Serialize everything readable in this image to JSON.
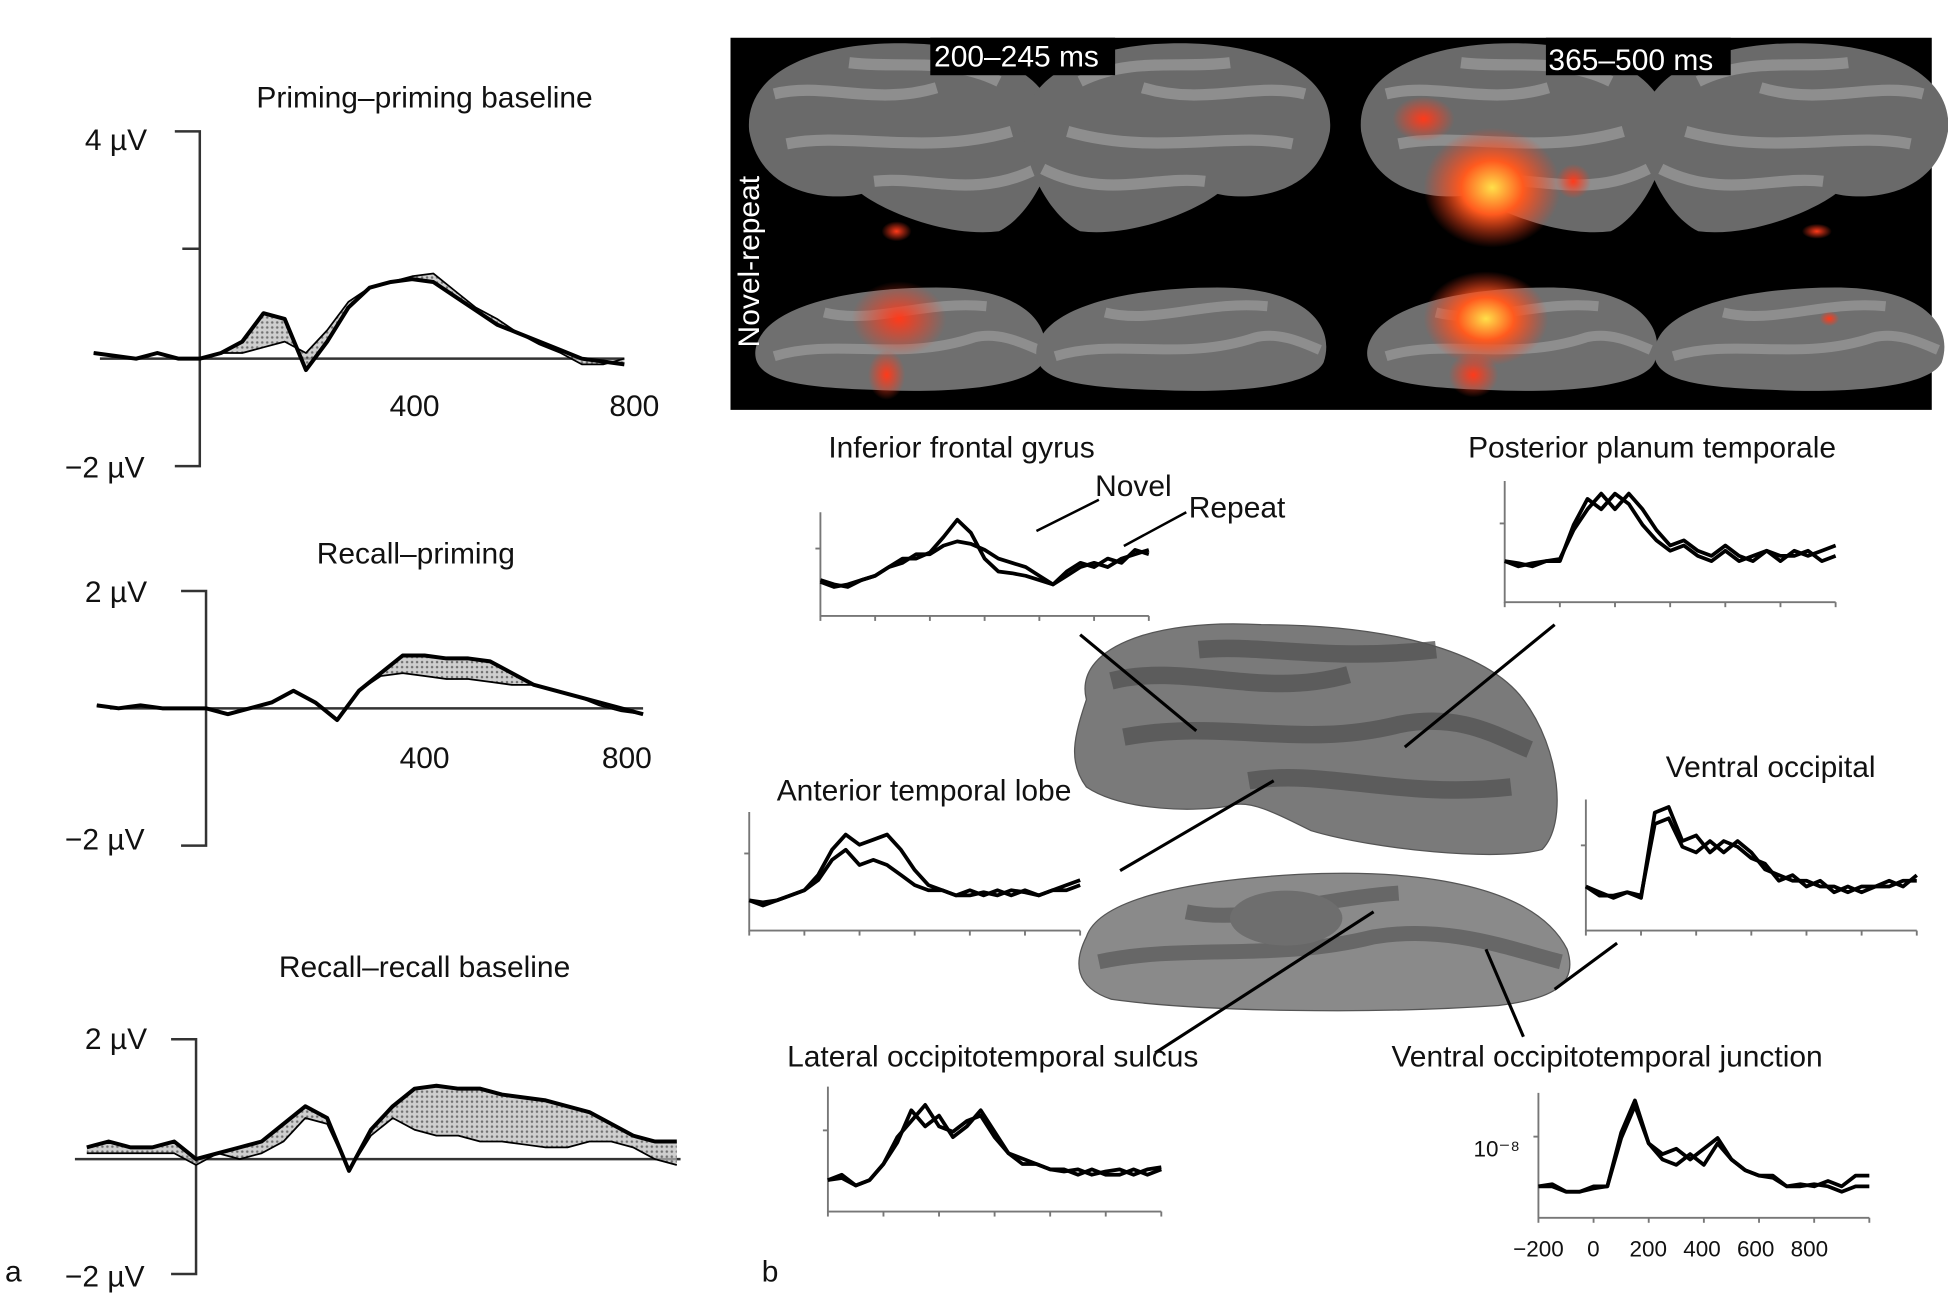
{
  "panel_labels": {
    "a": "a",
    "b": "b"
  },
  "brain_panel": {
    "time_window_1": "200–245 ms",
    "time_window_2": "365–500 ms",
    "row_label": "Novel-repeat"
  },
  "legend": {
    "novel": "Novel",
    "repeat": "Repeat"
  },
  "colors": {
    "activation": "#ff3a1a",
    "activation_hot": "#ffd23a",
    "cortex_dark": "#5a5a5a",
    "cortex_light": "#8a8a8a",
    "panel_bg": "#000000"
  },
  "chart_data": [
    {
      "type": "line",
      "panel": "a",
      "title": "Priming–priming baseline",
      "xlabel": "",
      "ylabel": "",
      "xlim": [
        -200,
        800
      ],
      "ylim": [
        -2,
        4
      ],
      "x_ticks": [
        "400",
        "800"
      ],
      "y_ticks": [
        "4 µV",
        "−2 µV"
      ],
      "t_start": -200,
      "t_step": 40,
      "series": [
        {
          "name": "thick",
          "values": [
            0.1,
            0.05,
            0,
            0.1,
            0,
            0,
            0.1,
            0.3,
            0.8,
            0.7,
            -0.2,
            0.3,
            0.9,
            1.25,
            1.35,
            1.4,
            1.35,
            1.1,
            0.85,
            0.6,
            0.45,
            0.3,
            0.15,
            0,
            -0.05,
            -0.1
          ]
        },
        {
          "name": "thin",
          "values": [
            0.1,
            0.05,
            0,
            0.1,
            0,
            0,
            0.1,
            0.1,
            0.2,
            0.3,
            0.1,
            0.5,
            1.0,
            1.25,
            1.35,
            1.45,
            1.5,
            1.2,
            0.9,
            0.7,
            0.45,
            0.25,
            0.1,
            -0.1,
            -0.1,
            0
          ]
        }
      ]
    },
    {
      "type": "line",
      "panel": "a",
      "title": "Recall–priming",
      "xlabel": "",
      "ylabel": "",
      "xlim": [
        -200,
        800
      ],
      "ylim": [
        -2,
        2
      ],
      "x_ticks": [
        "400",
        "800"
      ],
      "y_ticks": [
        "2 µV",
        "−2 µV"
      ],
      "t_start": -200,
      "t_step": 40,
      "series": [
        {
          "name": "thick",
          "values": [
            0.05,
            0,
            0.05,
            0,
            0,
            0,
            -0.1,
            0,
            0.1,
            0.3,
            0.1,
            -0.2,
            0.3,
            0.6,
            0.9,
            0.9,
            0.85,
            0.85,
            0.8,
            0.6,
            0.4,
            0.3,
            0.2,
            0.1,
            0,
            -0.1
          ]
        },
        {
          "name": "thin",
          "values": [
            0.05,
            0,
            0.05,
            0,
            0,
            0,
            -0.1,
            0,
            0.1,
            0.3,
            0.1,
            -0.2,
            0.3,
            0.55,
            0.6,
            0.55,
            0.5,
            0.5,
            0.45,
            0.4,
            0.4,
            0.3,
            0.2,
            0.05,
            -0.05,
            -0.1
          ]
        }
      ]
    },
    {
      "type": "line",
      "panel": "a",
      "title": "Recall–recall baseline",
      "xlabel": "",
      "ylabel": "",
      "xlim": [
        -200,
        880
      ],
      "ylim": [
        -2,
        2
      ],
      "x_ticks": [],
      "y_ticks": [
        "2 µV",
        "−2 µV"
      ],
      "t_start": -200,
      "t_step": 40,
      "series": [
        {
          "name": "thick",
          "values": [
            0.2,
            0.3,
            0.2,
            0.2,
            0.3,
            0,
            0.1,
            0.2,
            0.3,
            0.6,
            0.9,
            0.7,
            -0.2,
            0.5,
            0.9,
            1.2,
            1.25,
            1.2,
            1.2,
            1.1,
            1.05,
            1.0,
            0.9,
            0.8,
            0.6,
            0.4,
            0.3,
            0.3
          ]
        },
        {
          "name": "thin",
          "values": [
            0.1,
            0.1,
            0.1,
            0.1,
            0.1,
            -0.1,
            0.1,
            0,
            0.1,
            0.3,
            0.7,
            0.6,
            -0.2,
            0.4,
            0.7,
            0.5,
            0.4,
            0.4,
            0.3,
            0.3,
            0.25,
            0.2,
            0.2,
            0.3,
            0.3,
            0.2,
            0,
            -0.1
          ]
        }
      ]
    },
    {
      "type": "line",
      "panel": "b",
      "title": "Inferior frontal gyrus",
      "xlim": [
        -200,
        1000
      ],
      "ylim": [
        0,
        1
      ],
      "x_ticks": [],
      "y_ticks": [],
      "t_start": -200,
      "t_step": 50,
      "series": [
        {
          "name": "Novel",
          "values": [
            0.3,
            0.25,
            0.22,
            0.3,
            0.35,
            0.45,
            0.55,
            0.55,
            0.62,
            0.8,
            1.0,
            0.85,
            0.55,
            0.4,
            0.38,
            0.35,
            0.3,
            0.25,
            0.35,
            0.45,
            0.5,
            0.45,
            0.55,
            0.6,
            0.65
          ]
        },
        {
          "name": "Repeat",
          "values": [
            0.28,
            0.22,
            0.25,
            0.3,
            0.35,
            0.45,
            0.5,
            0.6,
            0.6,
            0.7,
            0.75,
            0.72,
            0.65,
            0.55,
            0.5,
            0.45,
            0.35,
            0.25,
            0.4,
            0.5,
            0.45,
            0.55,
            0.5,
            0.65,
            0.6
          ]
        }
      ]
    },
    {
      "type": "line",
      "panel": "b",
      "title": "Posterior planum temporale",
      "xlim": [
        -200,
        1000
      ],
      "ylim": [
        0,
        1
      ],
      "x_ticks": [],
      "y_ticks": [],
      "t_start": -200,
      "t_step": 50,
      "series": [
        {
          "name": "Novel",
          "values": [
            0.3,
            0.28,
            0.25,
            0.3,
            0.3,
            0.65,
            0.9,
            0.8,
            0.95,
            0.85,
            0.65,
            0.5,
            0.4,
            0.45,
            0.35,
            0.3,
            0.4,
            0.3,
            0.35,
            0.4,
            0.3,
            0.4,
            0.35,
            0.4,
            0.45
          ]
        },
        {
          "name": "Repeat",
          "values": [
            0.3,
            0.25,
            0.28,
            0.3,
            0.32,
            0.6,
            0.8,
            0.95,
            0.8,
            0.95,
            0.8,
            0.6,
            0.45,
            0.5,
            0.4,
            0.35,
            0.45,
            0.35,
            0.3,
            0.4,
            0.35,
            0.35,
            0.4,
            0.3,
            0.35
          ]
        }
      ]
    },
    {
      "type": "line",
      "panel": "b",
      "title": "Anterior temporal lobe",
      "xlim": [
        -200,
        1000
      ],
      "ylim": [
        0,
        1
      ],
      "x_ticks": [],
      "y_ticks": [],
      "t_start": -200,
      "t_step": 50,
      "series": [
        {
          "name": "Novel",
          "values": [
            0.2,
            0.15,
            0.2,
            0.25,
            0.3,
            0.45,
            0.7,
            0.85,
            0.75,
            0.8,
            0.85,
            0.7,
            0.5,
            0.35,
            0.3,
            0.25,
            0.3,
            0.25,
            0.3,
            0.25,
            0.3,
            0.25,
            0.3,
            0.35,
            0.4
          ]
        },
        {
          "name": "Repeat",
          "values": [
            0.2,
            0.18,
            0.2,
            0.25,
            0.3,
            0.4,
            0.6,
            0.7,
            0.55,
            0.6,
            0.55,
            0.45,
            0.35,
            0.3,
            0.3,
            0.25,
            0.25,
            0.28,
            0.25,
            0.3,
            0.28,
            0.25,
            0.3,
            0.3,
            0.35
          ]
        }
      ]
    },
    {
      "type": "line",
      "panel": "b",
      "title": "Ventral occipital",
      "xlim": [
        -200,
        1000
      ],
      "ylim": [
        0,
        1
      ],
      "x_ticks": [],
      "y_ticks": [],
      "t_start": -200,
      "t_step": 50,
      "series": [
        {
          "name": "Novel",
          "values": [
            0.3,
            0.25,
            0.2,
            0.25,
            0.2,
            0.95,
            1.0,
            0.7,
            0.75,
            0.6,
            0.7,
            0.65,
            0.55,
            0.5,
            0.35,
            0.4,
            0.3,
            0.35,
            0.25,
            0.3,
            0.25,
            0.3,
            0.35,
            0.3,
            0.4
          ]
        },
        {
          "name": "Repeat",
          "values": [
            0.3,
            0.22,
            0.22,
            0.25,
            0.22,
            0.85,
            0.9,
            0.65,
            0.6,
            0.7,
            0.6,
            0.7,
            0.6,
            0.45,
            0.4,
            0.35,
            0.35,
            0.3,
            0.3,
            0.25,
            0.3,
            0.3,
            0.3,
            0.35,
            0.35
          ]
        }
      ]
    },
    {
      "type": "line",
      "panel": "b",
      "title": "Lateral occipitotemporal sulcus",
      "xlim": [
        -200,
        1000
      ],
      "ylim": [
        0,
        1
      ],
      "x_ticks": [],
      "y_ticks": [],
      "t_start": -200,
      "t_step": 50,
      "series": [
        {
          "name": "Novel",
          "values": [
            0.2,
            0.25,
            0.15,
            0.2,
            0.35,
            0.55,
            0.85,
            0.7,
            0.8,
            0.6,
            0.7,
            0.85,
            0.65,
            0.45,
            0.4,
            0.35,
            0.3,
            0.3,
            0.25,
            0.3,
            0.25,
            0.25,
            0.3,
            0.25,
            0.3
          ]
        },
        {
          "name": "Repeat",
          "values": [
            0.2,
            0.22,
            0.15,
            0.2,
            0.35,
            0.6,
            0.75,
            0.9,
            0.7,
            0.65,
            0.75,
            0.8,
            0.6,
            0.45,
            0.35,
            0.35,
            0.3,
            0.28,
            0.3,
            0.25,
            0.28,
            0.3,
            0.25,
            0.3,
            0.32
          ]
        }
      ]
    },
    {
      "type": "line",
      "panel": "b",
      "title": "Ventral occipitotemporal junction",
      "xlim": [
        -200,
        1000
      ],
      "ylim": [
        0,
        1
      ],
      "x_ticks": [
        "−200",
        "0",
        "200",
        "400",
        "600",
        "800"
      ],
      "y_ticks": [
        "10⁻⁸"
      ],
      "t_start": -200,
      "t_step": 50,
      "series": [
        {
          "name": "Novel",
          "values": [
            0.2,
            0.22,
            0.15,
            0.15,
            0.2,
            0.2,
            0.7,
            1.0,
            0.6,
            0.5,
            0.55,
            0.45,
            0.55,
            0.65,
            0.45,
            0.35,
            0.3,
            0.3,
            0.2,
            0.22,
            0.2,
            0.25,
            0.2,
            0.3,
            0.3
          ]
        },
        {
          "name": "Repeat",
          "values": [
            0.2,
            0.2,
            0.15,
            0.15,
            0.18,
            0.2,
            0.65,
            0.95,
            0.6,
            0.45,
            0.4,
            0.5,
            0.4,
            0.6,
            0.45,
            0.35,
            0.3,
            0.28,
            0.2,
            0.2,
            0.22,
            0.2,
            0.15,
            0.2,
            0.2
          ]
        }
      ]
    }
  ]
}
